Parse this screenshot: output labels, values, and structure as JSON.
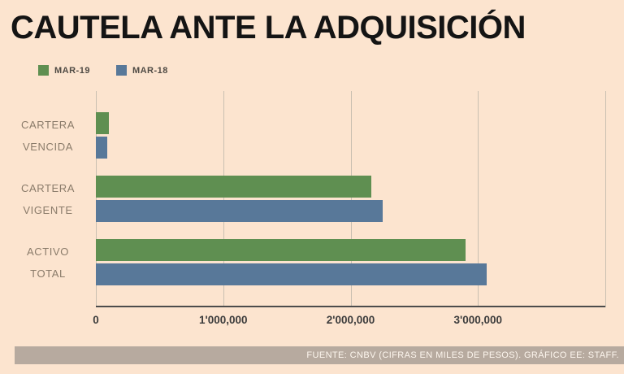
{
  "page": {
    "background": "#fce4cf"
  },
  "header": {
    "title": "CAUTELA ANTE LA ADQUISICIÓN"
  },
  "legend": {
    "items": [
      {
        "label": "MAR-19",
        "color": "#5f8f51"
      },
      {
        "label": "MAR-18",
        "color": "#587899"
      }
    ]
  },
  "chart_data": {
    "type": "bar",
    "orientation": "horizontal",
    "title": "CAUTELA ANTE LA ADQUISICIÓN",
    "categories": [
      "CARTERA VENCIDA",
      "CARTERA VIGENTE",
      "ACTIVO TOTAL"
    ],
    "category_lines": [
      [
        "CARTERA",
        "VENCIDA"
      ],
      [
        "CARTERA",
        "VIGENTE"
      ],
      [
        "ACTIVO",
        "TOTAL"
      ]
    ],
    "series": [
      {
        "name": "MAR-19",
        "color": "#5f8f51",
        "values": [
          100000,
          2160000,
          2900000
        ]
      },
      {
        "name": "MAR-18",
        "color": "#587899",
        "values": [
          90000,
          2250000,
          3070000
        ]
      }
    ],
    "xlim": [
      0,
      4000000
    ],
    "xticks": [
      {
        "value": 0,
        "label": "0"
      },
      {
        "value": 1000000,
        "label": "1'000,000"
      },
      {
        "value": 2000000,
        "label": "2'000,000"
      },
      {
        "value": 3000000,
        "label": "3'000,000"
      },
      {
        "value": 4000000,
        "label": ""
      }
    ],
    "grid": "vertical",
    "legend_position": "top-left",
    "units_note": "CIFRAS EN MILES DE PESOS"
  },
  "footer": {
    "source": "FUENTE: CNBV (CIFRAS EN MILES DE PESOS). GRÁFICO EE: STAFF."
  }
}
